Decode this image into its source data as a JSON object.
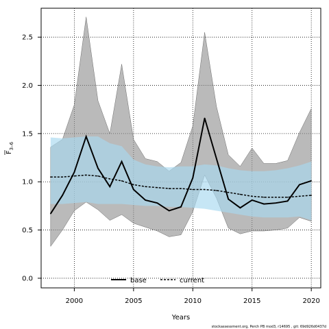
{
  "chart_data": {
    "type": "line",
    "xlabel": "Years",
    "ylabel": "F",
    "ylabel_subscript": "3–6",
    "xlim": [
      1997.2,
      2020.8
    ],
    "ylim": [
      -0.1,
      2.8
    ],
    "xticks": [
      2000,
      2005,
      2010,
      2015,
      2020
    ],
    "yticks": [
      0.0,
      0.5,
      1.0,
      1.5,
      2.0,
      2.5
    ],
    "grid": true,
    "legend_position": "bottom",
    "series": [
      {
        "name": "base",
        "color": "#000000",
        "style": "solid",
        "band_color": "#8c8c8c",
        "x": [
          1998,
          1999,
          2000,
          2001,
          2002,
          2003,
          2004,
          2005,
          2006,
          2007,
          2008,
          2009,
          2010,
          2011,
          2012,
          2013,
          2014,
          2015,
          2016,
          2017,
          2018,
          2019,
          2020
        ],
        "values": [
          0.67,
          0.86,
          1.1,
          1.47,
          1.14,
          0.95,
          1.21,
          0.92,
          0.81,
          0.78,
          0.7,
          0.74,
          1.04,
          1.66,
          1.24,
          0.82,
          0.73,
          0.81,
          0.77,
          0.78,
          0.8,
          0.97,
          1.01
        ],
        "upper": [
          1.36,
          1.44,
          1.8,
          2.71,
          1.84,
          1.5,
          2.22,
          1.44,
          1.24,
          1.21,
          1.11,
          1.2,
          1.58,
          2.55,
          1.78,
          1.28,
          1.16,
          1.35,
          1.19,
          1.19,
          1.22,
          1.51,
          1.76
        ],
        "lower": [
          0.33,
          0.5,
          0.7,
          0.79,
          0.71,
          0.6,
          0.66,
          0.57,
          0.53,
          0.49,
          0.43,
          0.45,
          0.69,
          1.07,
          0.83,
          0.52,
          0.46,
          0.49,
          0.49,
          0.5,
          0.52,
          0.63,
          0.59
        ]
      },
      {
        "name": "current",
        "color": "#000000",
        "style": "dashed",
        "band_color": "#a7d8f0",
        "x": [
          1998,
          1999,
          2000,
          2001,
          2002,
          2003,
          2004,
          2005,
          2006,
          2007,
          2008,
          2009,
          2010,
          2011,
          2012,
          2013,
          2014,
          2015,
          2016,
          2017,
          2018,
          2019,
          2020
        ],
        "values": [
          1.05,
          1.05,
          1.06,
          1.07,
          1.06,
          1.03,
          1.01,
          0.97,
          0.95,
          0.94,
          0.93,
          0.93,
          0.92,
          0.92,
          0.91,
          0.89,
          0.87,
          0.85,
          0.84,
          0.84,
          0.84,
          0.85,
          0.86
        ],
        "upper": [
          1.46,
          1.45,
          1.46,
          1.47,
          1.47,
          1.4,
          1.37,
          1.23,
          1.18,
          1.16,
          1.15,
          1.16,
          1.16,
          1.18,
          1.17,
          1.14,
          1.12,
          1.11,
          1.11,
          1.12,
          1.14,
          1.17,
          1.21
        ],
        "lower": [
          0.77,
          0.77,
          0.78,
          0.79,
          0.77,
          0.77,
          0.77,
          0.76,
          0.75,
          0.75,
          0.74,
          0.74,
          0.73,
          0.72,
          0.7,
          0.68,
          0.66,
          0.64,
          0.63,
          0.63,
          0.63,
          0.64,
          0.6
        ]
      }
    ]
  },
  "footer": "stockassessment.org, Perch PB mod3, r14695 , git: 69d926d0437d"
}
